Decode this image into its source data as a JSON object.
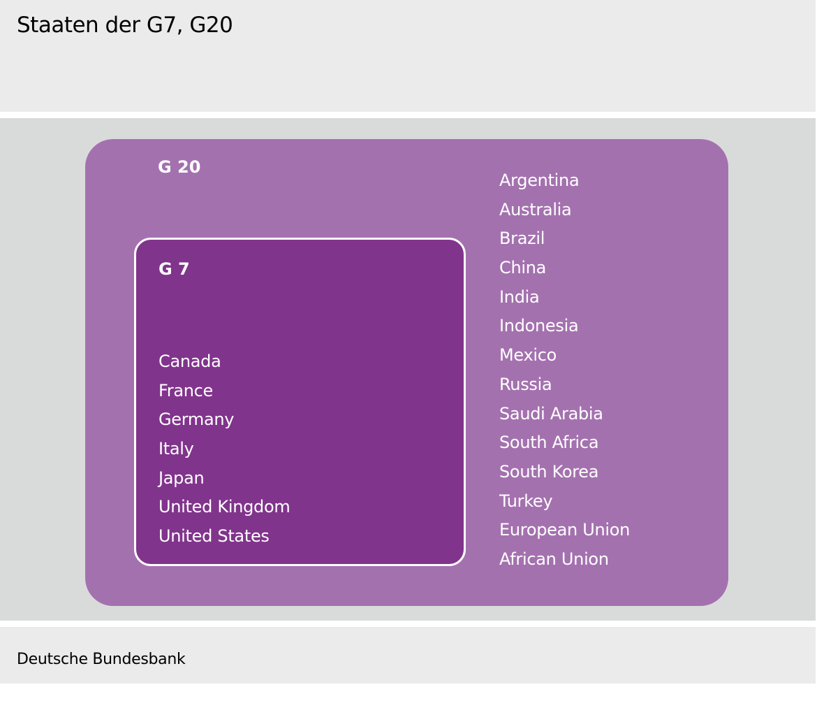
{
  "title": "Staaten der G7, G20",
  "source": "Deutsche Bundesbank",
  "colors": {
    "g20_fill": "#a471af",
    "g7_fill": "#81348c",
    "background": "#d9dbda"
  },
  "g20": {
    "label": "G 20",
    "members": [
      "Argentina",
      "Australia",
      "Brazil",
      "China",
      "India",
      "Indonesia",
      "Mexico",
      "Russia",
      "Saudi Arabia",
      "South Africa",
      "South Korea",
      "Turkey",
      "European Union",
      "African Union"
    ]
  },
  "g7": {
    "label": "G 7",
    "members": [
      "Canada",
      "France",
      "Germany",
      "Italy",
      "Japan",
      "United Kingdom",
      "United States"
    ]
  }
}
